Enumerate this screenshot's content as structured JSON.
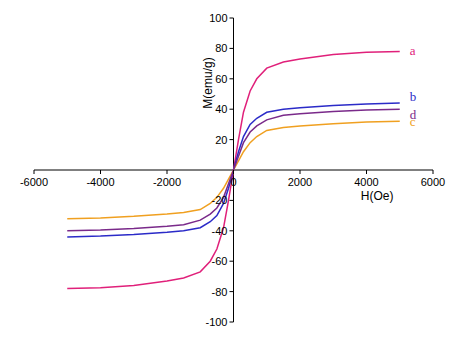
{
  "chart_data": {
    "type": "line",
    "x_label": "H(Oe)",
    "y_label": "M(emu/g)",
    "x": [
      -5000,
      -4000,
      -3000,
      -2000,
      -1500,
      -1000,
      -700,
      -500,
      -300,
      -150,
      0,
      150,
      300,
      500,
      700,
      1000,
      1500,
      2000,
      3000,
      4000,
      5000
    ],
    "series": [
      {
        "name": "a",
        "color": "#e0207a",
        "values": [
          -78,
          -77.5,
          -76,
          -73,
          -71,
          -67,
          -60,
          -52,
          -38,
          -20,
          0,
          20,
          38,
          52,
          60,
          67,
          71,
          73,
          76,
          77.5,
          78
        ]
      },
      {
        "name": "b",
        "color": "#2b2bc8",
        "values": [
          -44,
          -43.5,
          -42.5,
          -41,
          -40,
          -38,
          -34,
          -30,
          -22,
          -12,
          0,
          12,
          22,
          30,
          34,
          38,
          40,
          41,
          42.5,
          43.5,
          44
        ]
      },
      {
        "name": "c",
        "color": "#f0a020",
        "values": [
          -32,
          -31.5,
          -30.5,
          -29,
          -28,
          -26,
          -22,
          -18,
          -12,
          -6,
          0,
          6,
          12,
          18,
          22,
          26,
          28,
          29,
          30.5,
          31.5,
          32
        ]
      },
      {
        "name": "d",
        "color": "#7a2a8a",
        "values": [
          -40,
          -39.5,
          -38.5,
          -37,
          -36,
          -33,
          -29,
          -25,
          -18,
          -9,
          0,
          9,
          18,
          25,
          29,
          33,
          36,
          37,
          38.5,
          39.5,
          40
        ]
      }
    ],
    "xlim": [
      -6000,
      6000
    ],
    "xticks": [
      -6000,
      -4000,
      -2000,
      0,
      2000,
      4000,
      6000
    ],
    "ylim": [
      -100,
      100
    ],
    "yticks": [
      -100,
      -80,
      -60,
      -40,
      -20,
      20,
      40,
      60,
      80,
      100
    ],
    "grid": false
  }
}
